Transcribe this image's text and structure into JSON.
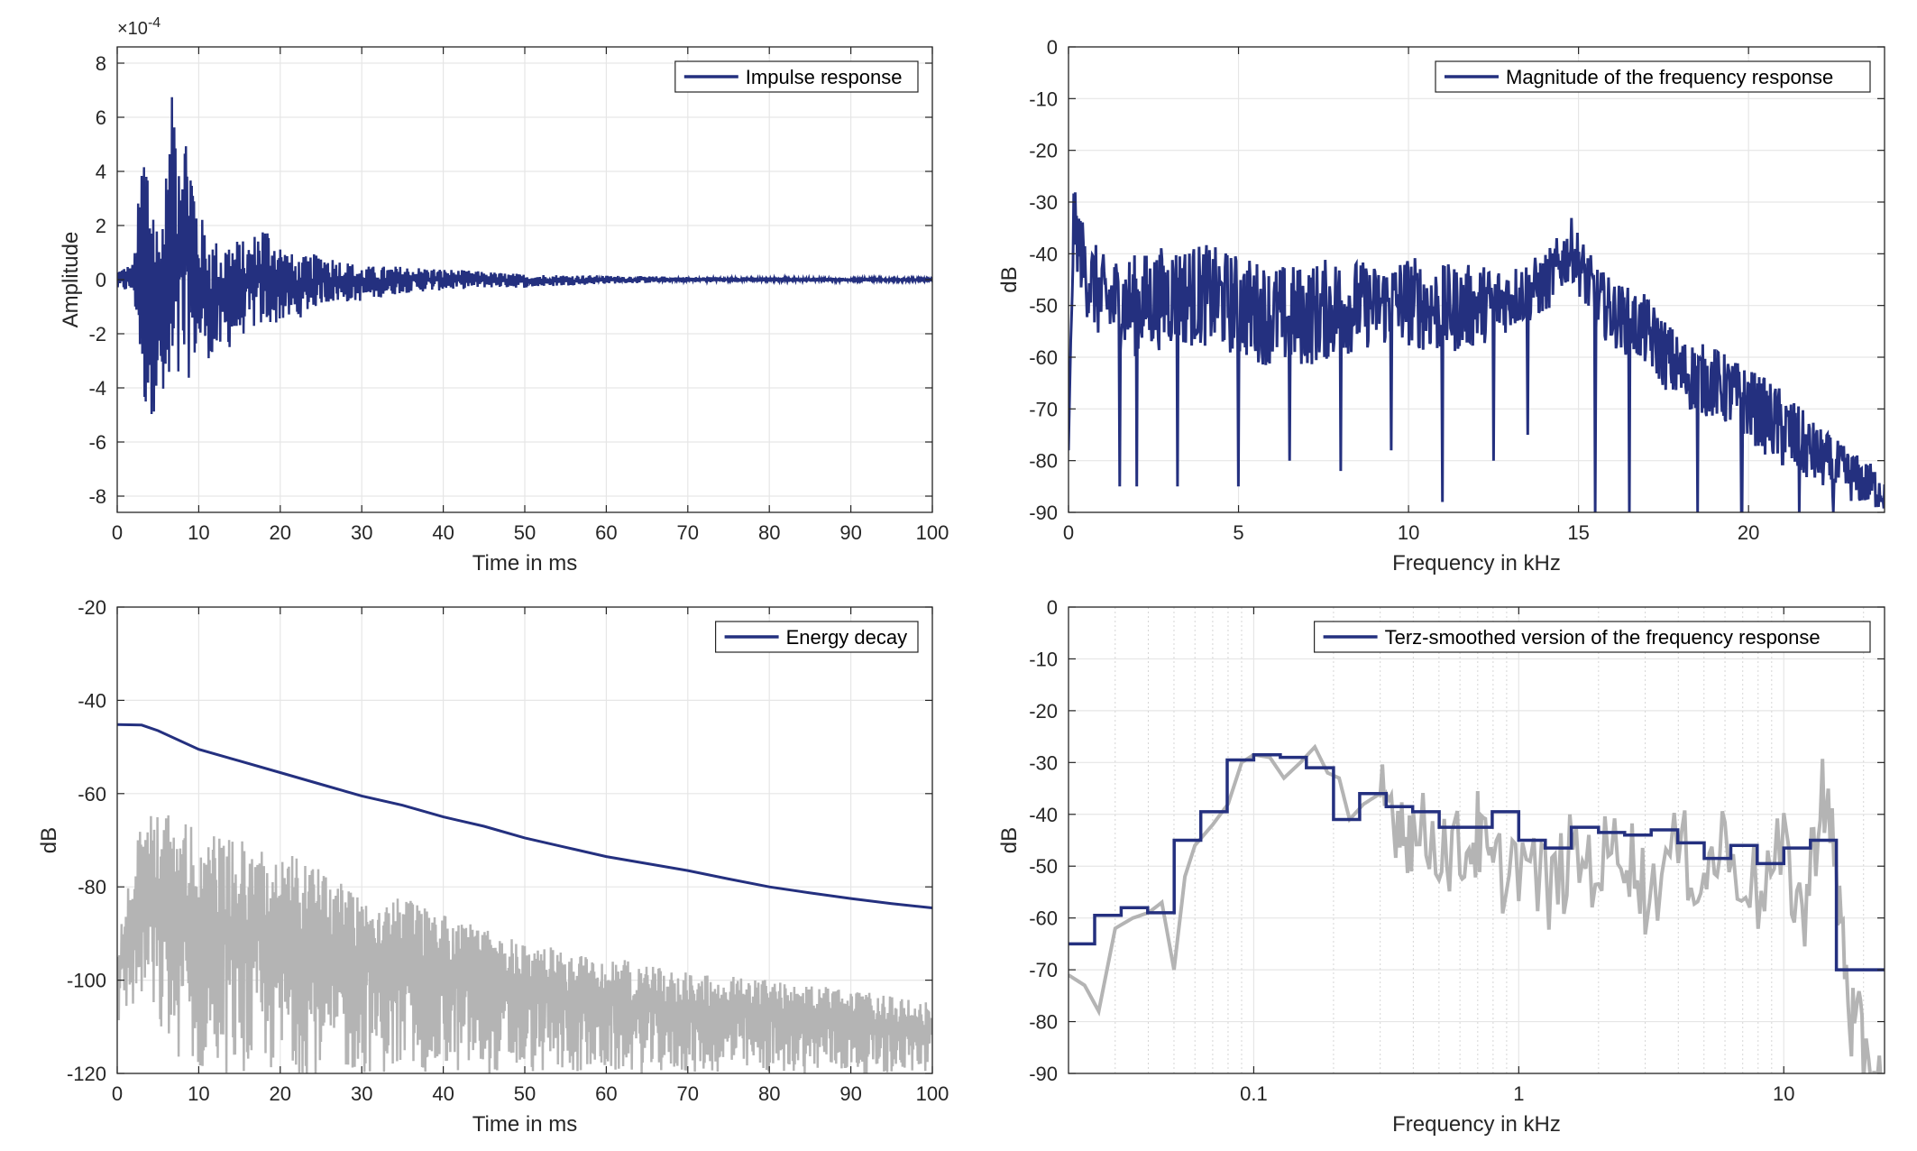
{
  "colors": {
    "series_main": "#24307f",
    "series_gray": "#b4b4b4",
    "grid": "#e6e6e6",
    "axis": "#262626"
  },
  "chart_data": [
    {
      "id": "impulse",
      "type": "line",
      "xlabel": "Time in ms",
      "ylabel": "Amplitude",
      "exponent_label": "×10",
      "exponent_power": "-4",
      "xlim": [
        0,
        100
      ],
      "ylim": [
        -8.6,
        8.6
      ],
      "xticks": [
        0,
        10,
        20,
        30,
        40,
        50,
        60,
        70,
        80,
        90,
        100
      ],
      "yticks": [
        -8,
        -6,
        -4,
        -2,
        0,
        2,
        4,
        6,
        8
      ],
      "grid": true,
      "legend_position": "top-right",
      "series": [
        {
          "name": "Impulse response",
          "note": "dense oscillating signal; envelope given as [time_ms, max, min]",
          "envelope": [
            [
              0,
              0.4,
              -0.4
            ],
            [
              2,
              0.6,
              -0.5
            ],
            [
              3.3,
              5.8,
              -4.9
            ],
            [
              4,
              4.8,
              -5.2
            ],
            [
              5,
              2.1,
              -4.6
            ],
            [
              6,
              4.2,
              -5.7
            ],
            [
              7,
              7.8,
              -5.5
            ],
            [
              8,
              6.5,
              -4.2
            ],
            [
              9,
              5.2,
              -3.5
            ],
            [
              10,
              2.5,
              -2.8
            ],
            [
              12,
              1.5,
              -3.0
            ],
            [
              14,
              1.6,
              -2.5
            ],
            [
              16,
              1.4,
              -1.9
            ],
            [
              18,
              2.2,
              -1.8
            ],
            [
              20,
              1.4,
              -1.6
            ],
            [
              22,
              0.8,
              -1.5
            ],
            [
              25,
              1.0,
              -0.9
            ],
            [
              30,
              0.5,
              -0.8
            ],
            [
              35,
              0.5,
              -0.5
            ],
            [
              40,
              0.4,
              -0.4
            ],
            [
              45,
              0.3,
              -0.3
            ],
            [
              50,
              0.2,
              -0.3
            ],
            [
              60,
              0.15,
              -0.15
            ],
            [
              70,
              0.1,
              -0.1
            ],
            [
              80,
              0.08,
              -0.08
            ],
            [
              100,
              0.05,
              -0.05
            ]
          ]
        }
      ]
    },
    {
      "id": "magnitude",
      "type": "line",
      "xlabel": "Frequency in kHz",
      "ylabel": "dB",
      "xlim": [
        0,
        24
      ],
      "ylim": [
        -90,
        0
      ],
      "xticks": [
        0,
        5,
        10,
        15,
        20
      ],
      "yticks": [
        0,
        -10,
        -20,
        -30,
        -40,
        -50,
        -60,
        -70,
        -80,
        -90
      ],
      "grid": true,
      "legend_position": "top-right",
      "series": [
        {
          "name": "Magnitude of the frequency response",
          "note": "noisy spectrum; approximate envelope [kHz, upper dB, lower dB]",
          "envelope": [
            [
              0,
              -78,
              -78
            ],
            [
              0.15,
              -27,
              -40
            ],
            [
              0.5,
              -35,
              -52
            ],
            [
              1,
              -40,
              -58
            ],
            [
              2,
              -40,
              -60
            ],
            [
              3,
              -38,
              -58
            ],
            [
              4,
              -38,
              -58
            ],
            [
              5,
              -40,
              -60
            ],
            [
              6,
              -42,
              -62
            ],
            [
              7,
              -42,
              -62
            ],
            [
              8,
              -40,
              -60
            ],
            [
              9,
              -42,
              -58
            ],
            [
              10,
              -40,
              -58
            ],
            [
              11,
              -42,
              -60
            ],
            [
              12,
              -42,
              -58
            ],
            [
              13,
              -42,
              -55
            ],
            [
              14,
              -40,
              -52
            ],
            [
              14.8,
              -33,
              -45
            ],
            [
              15.5,
              -42,
              -55
            ],
            [
              16,
              -45,
              -58
            ],
            [
              17,
              -48,
              -62
            ],
            [
              18,
              -56,
              -70
            ],
            [
              19,
              -58,
              -72
            ],
            [
              20,
              -62,
              -76
            ],
            [
              21,
              -66,
              -82
            ],
            [
              22,
              -73,
              -85
            ],
            [
              23,
              -78,
              -88
            ],
            [
              24,
              -82,
              -90
            ]
          ],
          "dips": [
            [
              1.5,
              -85
            ],
            [
              2,
              -85
            ],
            [
              3.2,
              -85
            ],
            [
              5,
              -85
            ],
            [
              6.5,
              -80
            ],
            [
              8,
              -82
            ],
            [
              9.5,
              -78
            ],
            [
              11,
              -88
            ],
            [
              12.5,
              -80
            ],
            [
              13.5,
              -75
            ],
            [
              15.5,
              -90
            ],
            [
              16.5,
              -90
            ],
            [
              18.5,
              -90
            ],
            [
              19.8,
              -90
            ],
            [
              21.5,
              -90
            ],
            [
              22.5,
              -90
            ]
          ]
        }
      ]
    },
    {
      "id": "decay",
      "type": "line",
      "xlabel": "Time in ms",
      "ylabel": "dB",
      "xlim": [
        0,
        100
      ],
      "ylim": [
        -120,
        -20
      ],
      "xticks": [
        0,
        10,
        20,
        30,
        40,
        50,
        60,
        70,
        80,
        90,
        100
      ],
      "yticks": [
        -20,
        -40,
        -60,
        -80,
        -100,
        -120
      ],
      "grid": true,
      "legend_position": "top-right",
      "series": [
        {
          "name": "Energy decay",
          "x": [
            0,
            3,
            5,
            10,
            15,
            20,
            25,
            30,
            35,
            40,
            45,
            50,
            55,
            60,
            65,
            70,
            75,
            80,
            85,
            90,
            95,
            100
          ],
          "y": [
            -45.2,
            -45.3,
            -46.5,
            -50.5,
            -53,
            -55.5,
            -58,
            -60.5,
            -62.5,
            -65,
            -67,
            -69.5,
            -71.5,
            -73.5,
            -75,
            -76.5,
            -78.3,
            -80,
            -81.3,
            -82.5,
            -83.6,
            -84.5
          ]
        },
        {
          "name": "",
          "note": "gray squared impulse response in dB; envelope [ms, upper, lower]",
          "envelope": [
            [
              0,
              -92,
              -110
            ],
            [
              3,
              -65,
              -105
            ],
            [
              6,
              -63,
              -115
            ],
            [
              10,
              -68,
              -120
            ],
            [
              20,
              -72,
              -120
            ],
            [
              30,
              -80,
              -120
            ],
            [
              40,
              -85,
              -120
            ],
            [
              50,
              -92,
              -120
            ],
            [
              60,
              -95,
              -120
            ],
            [
              70,
              -98,
              -120
            ],
            [
              80,
              -100,
              -120
            ],
            [
              90,
              -102,
              -120
            ],
            [
              100,
              -105,
              -120
            ]
          ]
        }
      ]
    },
    {
      "id": "terz",
      "type": "line",
      "xlabel": "Frequency in kHz",
      "ylabel": "dB",
      "xscale": "log",
      "xlim": [
        0.02,
        24
      ],
      "ylim": [
        -90,
        0
      ],
      "xticks": [
        0.1,
        1,
        10
      ],
      "xticklabels": [
        "0.1",
        "1",
        "10"
      ],
      "yticks": [
        0,
        -10,
        -20,
        -30,
        -40,
        -50,
        -60,
        -70,
        -80,
        -90
      ],
      "grid": true,
      "legend_position": "top-right",
      "series": [
        {
          "name": "Terz-smoothed version of the frequency response",
          "steps": [
            [
              0.02,
              0.0251,
              -65
            ],
            [
              0.0251,
              0.0316,
              -59.5
            ],
            [
              0.0316,
              0.0398,
              -58
            ],
            [
              0.0398,
              0.0501,
              -59
            ],
            [
              0.0501,
              0.0631,
              -45
            ],
            [
              0.0631,
              0.0794,
              -39.5
            ],
            [
              0.0794,
              0.1,
              -29.5
            ],
            [
              0.1,
              0.126,
              -28.5
            ],
            [
              0.126,
              0.158,
              -29
            ],
            [
              0.158,
              0.2,
              -31
            ],
            [
              0.2,
              0.251,
              -41
            ],
            [
              0.251,
              0.316,
              -36
            ],
            [
              0.316,
              0.398,
              -38.5
            ],
            [
              0.398,
              0.501,
              -39.5
            ],
            [
              0.501,
              0.631,
              -42.5
            ],
            [
              0.631,
              0.794,
              -42.5
            ],
            [
              0.794,
              1,
              -39.5
            ],
            [
              1,
              1.26,
              -45
            ],
            [
              1.26,
              1.58,
              -46.5
            ],
            [
              1.58,
              2,
              -42.5
            ],
            [
              2,
              2.51,
              -43.5
            ],
            [
              2.51,
              3.16,
              -44
            ],
            [
              3.16,
              3.98,
              -43
            ],
            [
              3.98,
              5.01,
              -45.5
            ],
            [
              5.01,
              6.31,
              -48.5
            ],
            [
              6.31,
              7.94,
              -46
            ],
            [
              7.94,
              10,
              -49.5
            ],
            [
              10,
              12.6,
              -46.5
            ],
            [
              12.6,
              15.8,
              -45
            ],
            [
              15.8,
              24,
              -70
            ]
          ]
        },
        {
          "name": "",
          "note": "gray unsmoothed frequency response on log axis; approx [kHz, dB]",
          "x": [
            0.02,
            0.023,
            0.026,
            0.03,
            0.035,
            0.04,
            0.045,
            0.05,
            0.055,
            0.06,
            0.07,
            0.08,
            0.09,
            0.1,
            0.115,
            0.13,
            0.15,
            0.17,
            0.19,
            0.21,
            0.23,
            0.26,
            0.3,
            0.35,
            0.4,
            0.5,
            0.6,
            0.7,
            0.8,
            1,
            1.3,
            1.6,
            2,
            2.5,
            3,
            4,
            5,
            6,
            8,
            10,
            12,
            14,
            16,
            18,
            20,
            24
          ],
          "y": [
            -71,
            -73,
            -78,
            -62,
            -60,
            -59,
            -57,
            -70,
            -52,
            -46,
            -42,
            -38,
            -30,
            -28.5,
            -29,
            -33,
            -30,
            -27,
            -32,
            -33,
            -41,
            -38,
            -36,
            -40,
            -44,
            -45,
            -48,
            -44,
            -52,
            -48,
            -55,
            -48,
            -50,
            -45,
            -55,
            -47,
            -52,
            -45,
            -55,
            -48,
            -60,
            -33,
            -55,
            -80,
            -85,
            -90
          ]
        }
      ]
    }
  ]
}
